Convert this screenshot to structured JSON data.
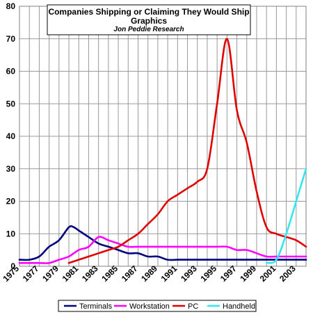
{
  "chart_data": {
    "type": "line",
    "title": "Companies  Shipping or Claiming They Would Ship Graphics",
    "subtitle": "Jon Peddie Research",
    "xlabel": "",
    "ylabel": "",
    "xlim": [
      1975,
      2004
    ],
    "ylim": [
      0,
      80
    ],
    "y_ticks": [
      "0",
      "10",
      "20",
      "30",
      "40",
      "50",
      "60",
      "70",
      "80"
    ],
    "x_ticks": [
      "1975",
      "1977",
      "1979",
      "1981",
      "1983",
      "1985",
      "1987",
      "1989",
      "1991",
      "1993",
      "1995",
      "1997",
      "1999",
      "2001",
      "2003"
    ],
    "grid": true,
    "legend_position": "bottom",
    "series": [
      {
        "name": "Terminals",
        "color": "#000080",
        "x": [
          1975,
          1976,
          1977,
          1978,
          1979,
          1980,
          1980.5,
          1981,
          1982,
          1983,
          1984,
          1985,
          1986,
          1987,
          1988,
          1989,
          1990,
          1991,
          1992,
          1993,
          1994,
          1995,
          1996,
          1997,
          1998,
          1999,
          2000,
          2001,
          2002,
          2003,
          2004
        ],
        "values": [
          2,
          2,
          3,
          6,
          8,
          12,
          12,
          11,
          9,
          7,
          6,
          5,
          4,
          4,
          3,
          3,
          2,
          2,
          2,
          2,
          2,
          2,
          2,
          2,
          2,
          2,
          2,
          2,
          2,
          2,
          2
        ]
      },
      {
        "name": "Workstation",
        "color": "#ff00ff",
        "x": [
          1975,
          1976,
          1977,
          1978,
          1979,
          1980,
          1981,
          1982,
          1983,
          1984,
          1985,
          1986,
          1987,
          1988,
          1989,
          1990,
          1991,
          1992,
          1993,
          1994,
          1995,
          1996,
          1997,
          1998,
          1999,
          2000,
          2001,
          2002,
          2003,
          2004
        ],
        "values": [
          1,
          1,
          1,
          1,
          2,
          3,
          5,
          6,
          9,
          8,
          7,
          6,
          6,
          6,
          6,
          6,
          6,
          6,
          6,
          6,
          6,
          6,
          5,
          5,
          4,
          3,
          3,
          3,
          3,
          3
        ]
      },
      {
        "name": "PC",
        "color": "#e00000",
        "x": [
          1980,
          1981,
          1982,
          1983,
          1984,
          1985,
          1986,
          1987,
          1988,
          1989,
          1990,
          1991,
          1992,
          1993,
          1994,
          1995,
          1996,
          1997,
          1998,
          1999,
          2000,
          2001,
          2002,
          2003,
          2004
        ],
        "values": [
          1,
          2,
          3,
          4,
          5,
          6,
          8,
          10,
          13,
          16,
          20,
          22,
          24,
          26,
          30,
          50,
          70,
          48,
          38,
          23,
          12,
          10,
          9,
          8,
          6
        ]
      },
      {
        "name": "Handheld",
        "color": "#33e6f0",
        "x": [
          2000,
          2001,
          2002,
          2003,
          2004
        ],
        "values": [
          1,
          2,
          10,
          20,
          30
        ]
      }
    ]
  }
}
